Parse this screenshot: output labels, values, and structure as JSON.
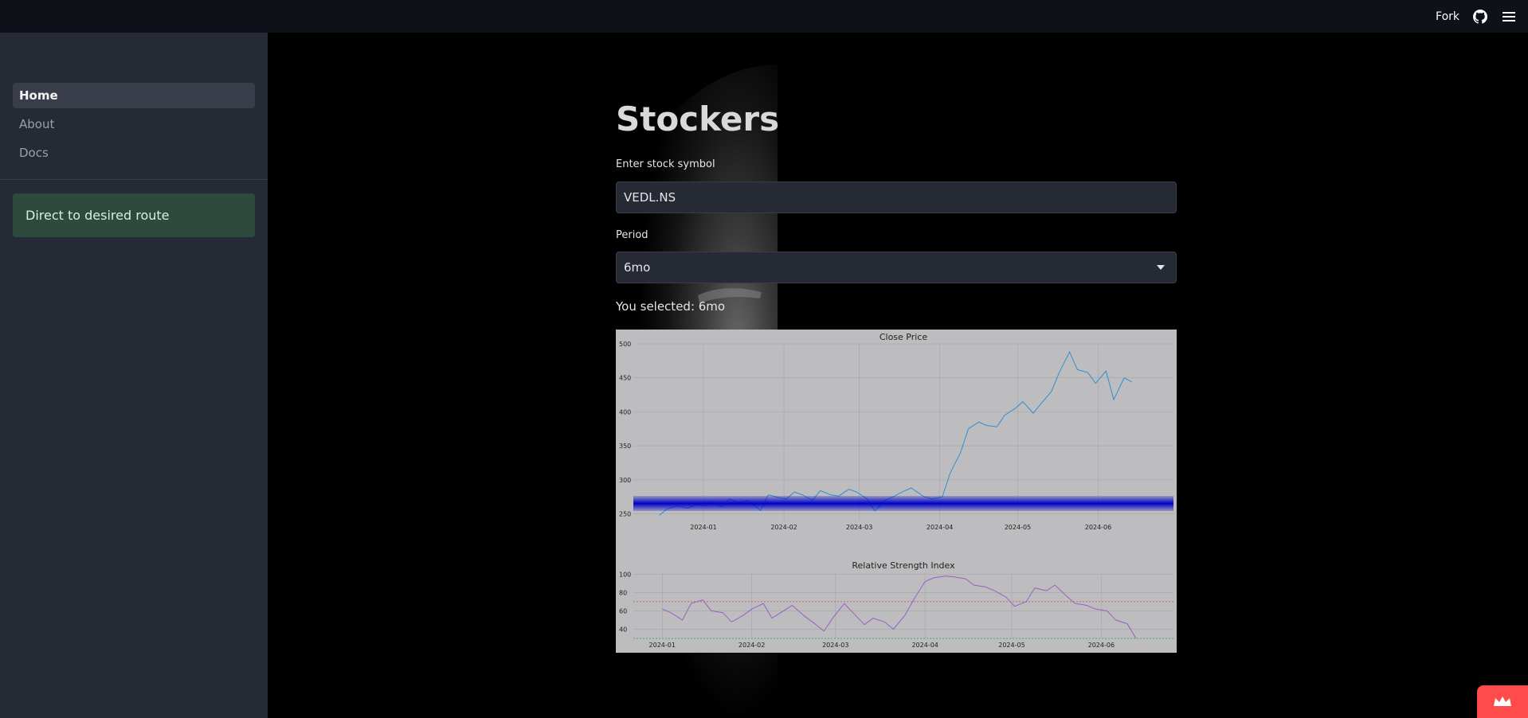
{
  "header": {
    "fork_label": "Fork",
    "github_icon": "github-icon",
    "menu_icon": "hamburger-menu-icon"
  },
  "sidebar": {
    "items": [
      {
        "label": "Home",
        "active": true
      },
      {
        "label": "About",
        "active": false
      },
      {
        "label": "Docs",
        "active": false
      }
    ],
    "info_text": "Direct to desired route"
  },
  "main": {
    "title": "Stockers",
    "symbol_label": "Enter stock symbol",
    "symbol_value": "VEDL.NS",
    "period_label": "Period",
    "period_value": "6mo",
    "selected_text": "You selected: 6mo"
  },
  "colors": {
    "accent": "#ff4b4b",
    "info_bg": "#2d4a3c",
    "sidebar_bg": "#262a35"
  },
  "chart_data": [
    {
      "type": "line",
      "title": "Close Price",
      "x": [
        "2023-12-15",
        "2023-12-18",
        "2023-12-22",
        "2023-12-26",
        "2023-12-29",
        "2024-01-02",
        "2024-01-05",
        "2024-01-08",
        "2024-01-11",
        "2024-01-15",
        "2024-01-18",
        "2024-01-23",
        "2024-01-26",
        "2024-01-30",
        "2024-02-02",
        "2024-02-05",
        "2024-02-08",
        "2024-02-12",
        "2024-02-15",
        "2024-02-19",
        "2024-02-22",
        "2024-02-26",
        "2024-02-29",
        "2024-03-04",
        "2024-03-07",
        "2024-03-11",
        "2024-03-14",
        "2024-03-18",
        "2024-03-21",
        "2024-03-26",
        "2024-03-29",
        "2024-04-02",
        "2024-04-05",
        "2024-04-09",
        "2024-04-12",
        "2024-04-16",
        "2024-04-19",
        "2024-04-23",
        "2024-04-26",
        "2024-04-30",
        "2024-05-03",
        "2024-05-07",
        "2024-05-10",
        "2024-05-14",
        "2024-05-17",
        "2024-05-21",
        "2024-05-24",
        "2024-05-28",
        "2024-05-31",
        "2024-06-04",
        "2024-06-07",
        "2024-06-11",
        "2024-06-14"
      ],
      "series": [
        {
          "values": [
            248,
            257,
            262,
            258,
            264,
            262,
            267,
            260,
            272,
            266,
            270,
            255,
            278,
            274,
            272,
            282,
            278,
            270,
            284,
            278,
            276,
            286,
            282,
            272,
            254,
            270,
            275,
            283,
            288,
            275,
            272,
            275,
            310,
            340,
            375,
            385,
            380,
            378,
            395,
            405,
            415,
            398,
            412,
            430,
            458,
            488,
            462,
            458,
            442,
            460,
            418,
            450,
            444
          ]
        }
      ],
      "ylim": [
        240,
        500
      ],
      "yticks": [
        250,
        300,
        350,
        400,
        450,
        500
      ],
      "xticks": [
        "2024-01",
        "2024-02",
        "2024-03",
        "2024-04",
        "2024-05",
        "2024-06"
      ],
      "grid": true
    },
    {
      "type": "line",
      "title": "Relative Strength Index",
      "x": [
        "2024-01-01",
        "2024-01-04",
        "2024-01-08",
        "2024-01-11",
        "2024-01-15",
        "2024-01-18",
        "2024-01-22",
        "2024-01-25",
        "2024-01-29",
        "2024-02-01",
        "2024-02-05",
        "2024-02-08",
        "2024-02-12",
        "2024-02-15",
        "2024-02-19",
        "2024-02-22",
        "2024-02-26",
        "2024-02-29",
        "2024-03-04",
        "2024-03-07",
        "2024-03-11",
        "2024-03-14",
        "2024-03-18",
        "2024-03-21",
        "2024-03-25",
        "2024-03-28",
        "2024-04-01",
        "2024-04-04",
        "2024-04-08",
        "2024-04-11",
        "2024-04-15",
        "2024-04-18",
        "2024-04-22",
        "2024-04-25",
        "2024-04-29",
        "2024-05-02",
        "2024-05-06",
        "2024-05-09",
        "2024-05-13",
        "2024-05-16",
        "2024-05-20",
        "2024-05-23",
        "2024-05-27",
        "2024-05-30",
        "2024-06-03",
        "2024-06-06",
        "2024-06-10",
        "2024-06-13"
      ],
      "series": [
        {
          "values": [
            62,
            58,
            50,
            68,
            72,
            60,
            58,
            48,
            55,
            62,
            68,
            52,
            60,
            66,
            55,
            48,
            38,
            52,
            68,
            58,
            45,
            52,
            48,
            40,
            55,
            72,
            92,
            96,
            98,
            97,
            95,
            88,
            86,
            82,
            75,
            65,
            70,
            85,
            82,
            88,
            76,
            68,
            66,
            62,
            60,
            50,
            46,
            30
          ]
        }
      ],
      "ylim": [
        30,
        102
      ],
      "yticks": [
        40,
        60,
        80,
        100
      ],
      "xticks": [
        "2024-01",
        "2024-02",
        "2024-03",
        "2024-04",
        "2024-05",
        "2024-06"
      ],
      "hlines": [
        70,
        30
      ],
      "grid": true
    }
  ]
}
